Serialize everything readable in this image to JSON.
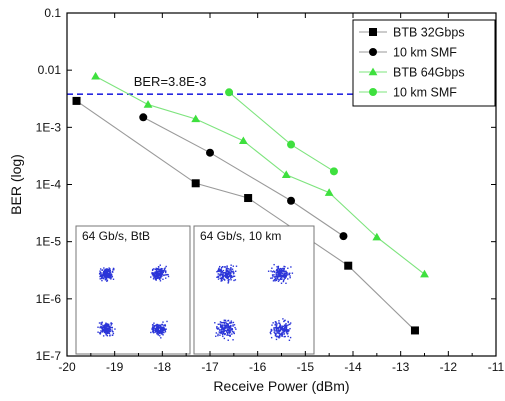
{
  "chart_data": {
    "type": "scatter",
    "title": "",
    "xlabel": "Receive Power (dBm)",
    "ylabel": "BER (log)",
    "xlim": [
      -20,
      -11
    ],
    "ylim": [
      1e-07,
      0.1
    ],
    "yscale": "log",
    "grid": false,
    "legend_position": "top-right",
    "x_ticks": [
      "-20",
      "-19",
      "-18",
      "-17",
      "-16",
      "-15",
      "-14",
      "-13",
      "-12",
      "-11"
    ],
    "y_ticks": [
      "0.1",
      "0.01",
      "1E-3",
      "1E-4",
      "1E-5",
      "1E-6",
      "1E-7"
    ],
    "reference_line": {
      "label": "BER=3.8E-3",
      "value": 0.0038,
      "color": "#2828e0"
    },
    "series": [
      {
        "name": "BTB 32Gbps",
        "marker": "square",
        "color": "#000000",
        "line_color": "#9a9a9a",
        "points": [
          [
            -19.8,
            0.0029
          ],
          [
            -17.3,
            0.000105
          ],
          [
            -16.2,
            5.8e-05
          ],
          [
            -14.1,
            3.8e-06
          ],
          [
            -12.7,
            2.8e-07
          ]
        ]
      },
      {
        "name": "10 km SMF",
        "marker": "circle",
        "color": "#000000",
        "line_color": "#9a9a9a",
        "points": [
          [
            -18.4,
            0.0015
          ],
          [
            -17.0,
            0.00036
          ],
          [
            -15.3,
            5.2e-05
          ],
          [
            -14.2,
            1.25e-05
          ]
        ]
      },
      {
        "name": "BTB 64Gbps",
        "marker": "triangle",
        "color": "#3ee03e",
        "line_color": "#7ee47e",
        "points": [
          [
            -19.4,
            0.0078
          ],
          [
            -18.3,
            0.0025
          ],
          [
            -17.3,
            0.0014
          ],
          [
            -16.3,
            0.00058
          ],
          [
            -15.4,
            0.000148
          ],
          [
            -14.5,
            7.2e-05
          ],
          [
            -13.5,
            1.2e-05
          ],
          [
            -12.5,
            2.7e-06
          ]
        ]
      },
      {
        "name": "10 km SMF",
        "marker": "circle",
        "color": "#3ee03e",
        "line_color": "#7ee47e",
        "points": [
          [
            -16.6,
            0.0041
          ],
          [
            -15.3,
            0.0005
          ],
          [
            -14.4,
            0.00017
          ]
        ]
      }
    ],
    "insets": [
      {
        "title": "64 Gb/s, BtB"
      },
      {
        "title": "64 Gb/s, 10 km"
      }
    ]
  }
}
